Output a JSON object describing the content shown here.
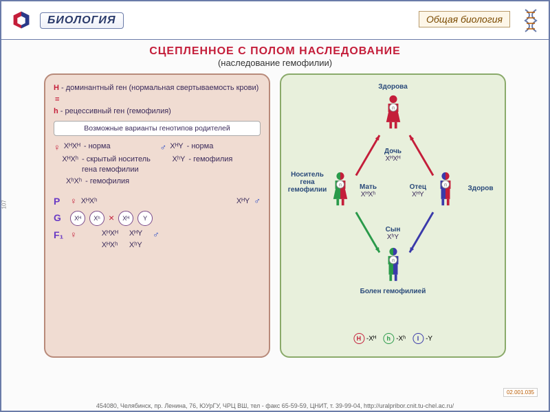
{
  "header": {
    "brand": "БИОЛОГИЯ",
    "category": "Общая биология"
  },
  "title": {
    "main": "СЦЕПЛЕННОЕ С ПОЛОМ НАСЛЕДОВАНИЕ",
    "sub": "(наследование гемофилии)"
  },
  "left_panel": {
    "gene_H_sym": "H",
    "gene_H": "- доминантный ген (нормальная свертываемость крови)",
    "gene_h_sym": "h",
    "gene_h": "- рецессивный ген (гемофилия)",
    "variants_title": "Возможные варианты генотипов родителей",
    "female_rows": [
      {
        "geno": "XᴴXᴴ",
        "desc": "- норма"
      },
      {
        "geno": "XᴴXʰ",
        "desc": "- скрытый носитель гена гемофилии"
      },
      {
        "geno": "XʰXʰ",
        "desc": "- гемофилия"
      }
    ],
    "male_rows": [
      {
        "geno": "XᴴY",
        "desc": "- норма"
      },
      {
        "geno": "XʰY",
        "desc": "- гемофилия"
      }
    ],
    "P_label": "P",
    "P_female": "XᴴXʰ",
    "P_male": "XᴴY",
    "G_label": "G",
    "gametes_f": [
      "Xᴴ",
      "Xʰ"
    ],
    "gametes_m": [
      "Xᴴ",
      "Y"
    ],
    "F1_label": "F₁",
    "F1": [
      "XᴴXᴴ",
      "XᴴY",
      "XᴴXʰ",
      "XʰY"
    ]
  },
  "right_panel": {
    "top": {
      "label": "Здорова",
      "geno": ""
    },
    "daughter": {
      "label": "Дочь",
      "geno": "XᴴXᴴ"
    },
    "mother": {
      "label": "Мать",
      "geno": "XᴴXʰ",
      "side": "Носитель гена гемофилии"
    },
    "father": {
      "label": "Отец",
      "geno": "XᴴY",
      "side": "Здоров"
    },
    "son": {
      "label": "Сын",
      "geno": "XʰY"
    },
    "bottom": {
      "label": "Болен гемофилией"
    },
    "legend": [
      {
        "sym": "H",
        "txt": "-Xᴴ",
        "color": "#c41e3a"
      },
      {
        "sym": "h",
        "txt": "-Xʰ",
        "color": "#2a9a4a"
      },
      {
        "sym": "I",
        "txt": "-Y",
        "color": "#3a3aaa"
      }
    ],
    "colors": {
      "healthy_f": "#c41e3a",
      "carrier_a": "#2a9a4a",
      "carrier_b": "#c41e3a",
      "father_a": "#3a3aaa",
      "father_b": "#c41e3a",
      "sick_a": "#2a9a4a",
      "sick_b": "#3a3aaa"
    }
  },
  "footer": "454080, Челябинск, пр. Ленина, 76, ЮУрГУ, ЧРЦ ВШ, тел - факс 65-59-59, ЦНИТ, т. 39-99-04, http://uralpribor.cnit.tu-chel.ac.ru/",
  "code": "02.001.035",
  "sidecode": "107"
}
